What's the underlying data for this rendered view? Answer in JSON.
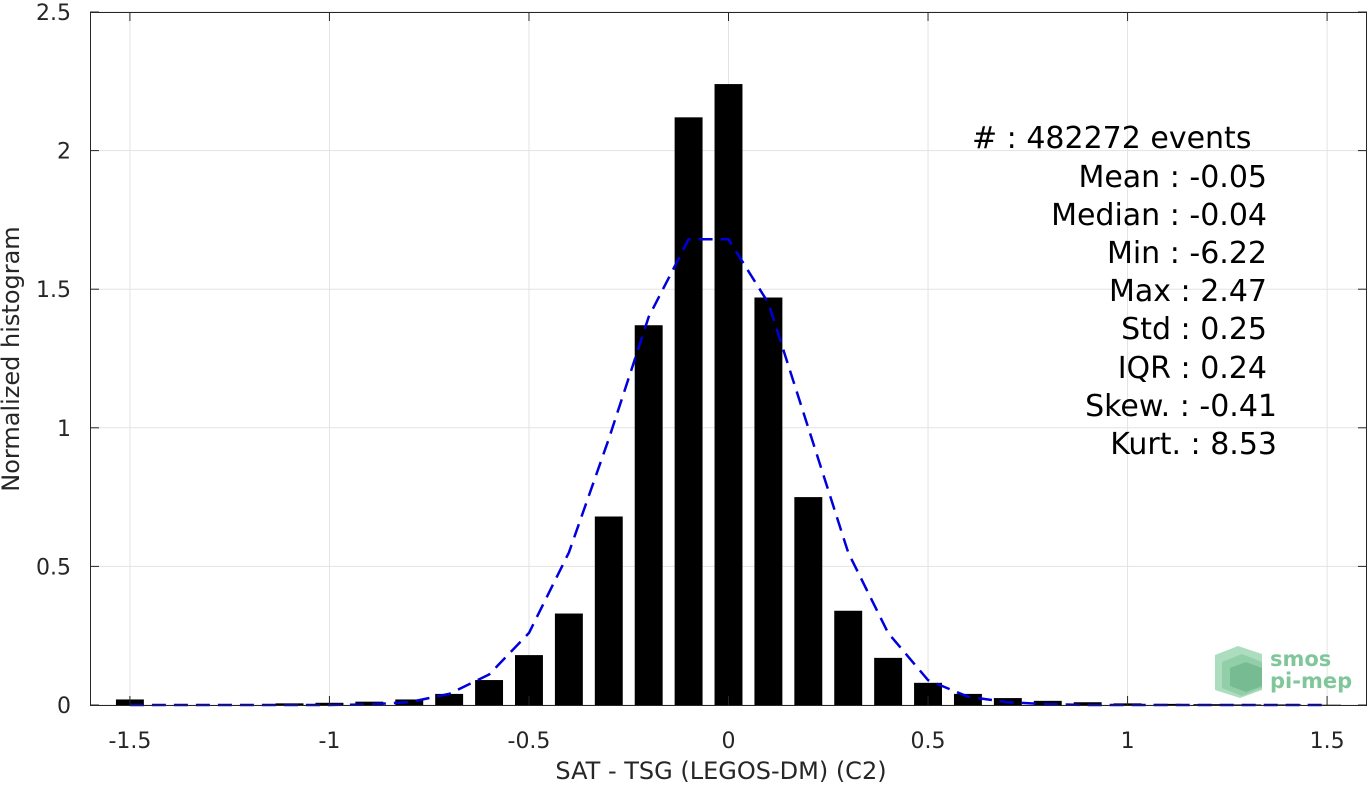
{
  "chart_data": {
    "type": "bar",
    "xlabel": "SAT - TSG (LEGOS-DM) (C2)",
    "ylabel": "Normalized histogram",
    "xlim": [
      -1.6,
      1.6
    ],
    "ylim": [
      0,
      2.5
    ],
    "xticks": [
      -1.5,
      -1,
      -0.5,
      0,
      0.5,
      1,
      1.5
    ],
    "xtick_labels": [
      "-1.5",
      "-1",
      "-0.5",
      "0",
      "0.5",
      "1",
      "1.5"
    ],
    "yticks": [
      0,
      0.5,
      1,
      1.5,
      2,
      2.5
    ],
    "ytick_labels": [
      "0",
      "0.5",
      "1",
      "1.5",
      "2",
      "2.5"
    ],
    "grid": true,
    "bar_width": 0.07,
    "bar_color": "#000000",
    "bars": [
      {
        "x": -1.5,
        "y": 0.02
      },
      {
        "x": -1.4,
        "y": 0.0
      },
      {
        "x": -1.3,
        "y": 0.0
      },
      {
        "x": -1.2,
        "y": 0.0
      },
      {
        "x": -1.1,
        "y": 0.006
      },
      {
        "x": -1.0,
        "y": 0.008
      },
      {
        "x": -0.9,
        "y": 0.012
      },
      {
        "x": -0.8,
        "y": 0.02
      },
      {
        "x": -0.7,
        "y": 0.04
      },
      {
        "x": -0.6,
        "y": 0.09
      },
      {
        "x": -0.5,
        "y": 0.18
      },
      {
        "x": -0.4,
        "y": 0.33
      },
      {
        "x": -0.3,
        "y": 0.68
      },
      {
        "x": -0.2,
        "y": 1.37
      },
      {
        "x": -0.1,
        "y": 2.12
      },
      {
        "x": 0.0,
        "y": 2.24
      },
      {
        "x": 0.1,
        "y": 1.47
      },
      {
        "x": 0.2,
        "y": 0.75
      },
      {
        "x": 0.3,
        "y": 0.34
      },
      {
        "x": 0.4,
        "y": 0.17
      },
      {
        "x": 0.5,
        "y": 0.08
      },
      {
        "x": 0.6,
        "y": 0.04
      },
      {
        "x": 0.7,
        "y": 0.025
      },
      {
        "x": 0.8,
        "y": 0.015
      },
      {
        "x": 0.9,
        "y": 0.01
      },
      {
        "x": 1.0,
        "y": 0.006
      },
      {
        "x": 1.1,
        "y": 0.004
      },
      {
        "x": 1.2,
        "y": 0.003
      },
      {
        "x": 1.3,
        "y": 0.002
      },
      {
        "x": 1.4,
        "y": 0.002
      },
      {
        "x": 1.5,
        "y": 0.001
      }
    ],
    "fit_curve": {
      "color": "#0000dd",
      "style": "dashed",
      "points": [
        [
          -1.5,
          0.0
        ],
        [
          -1.4,
          0.0
        ],
        [
          -1.3,
          0.0
        ],
        [
          -1.2,
          0.0
        ],
        [
          -1.1,
          0.0
        ],
        [
          -1.0,
          0.0
        ],
        [
          -0.9,
          0.002
        ],
        [
          -0.8,
          0.01
        ],
        [
          -0.7,
          0.04
        ],
        [
          -0.6,
          0.11
        ],
        [
          -0.5,
          0.26
        ],
        [
          -0.4,
          0.55
        ],
        [
          -0.3,
          0.96
        ],
        [
          -0.2,
          1.4
        ],
        [
          -0.1,
          1.68
        ],
        [
          0.0,
          1.68
        ],
        [
          0.1,
          1.45
        ],
        [
          0.2,
          1.0
        ],
        [
          0.3,
          0.55
        ],
        [
          0.4,
          0.26
        ],
        [
          0.5,
          0.09
        ],
        [
          0.6,
          0.03
        ],
        [
          0.7,
          0.01
        ],
        [
          0.8,
          0.003
        ],
        [
          0.9,
          0.0
        ],
        [
          1.0,
          0.0
        ],
        [
          1.1,
          0.0
        ],
        [
          1.2,
          0.0
        ],
        [
          1.3,
          0.0
        ],
        [
          1.4,
          0.0
        ],
        [
          1.5,
          0.0
        ]
      ]
    },
    "annotations": [
      "#  : 482272 events",
      "Mean : -0.05",
      "Median : -0.04",
      "Min : -6.22",
      "Max : 2.47",
      "Std : 0.25",
      "IQR : 0.24",
      "Skew. : -0.41",
      "Kurt. : 8.53"
    ]
  },
  "logo": {
    "line1": "smos",
    "line2": "pi-mep",
    "color": "#7fc79a"
  }
}
